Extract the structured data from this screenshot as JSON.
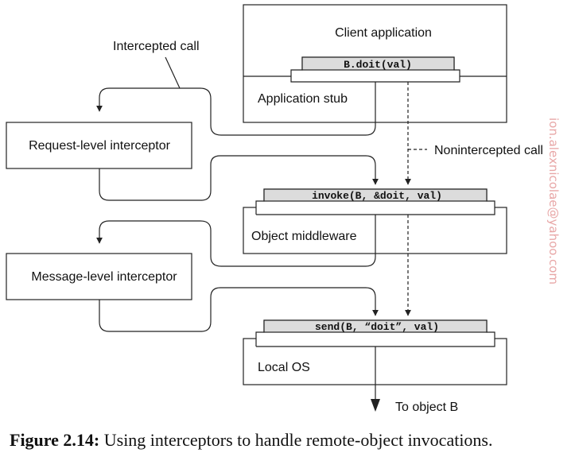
{
  "diagram": {
    "client_application": "Client application",
    "application_stub": "Application stub",
    "stub_call": "B.doit(val)",
    "intercepted_call": "Intercepted call",
    "nonintercepted_call": "Nonintercepted call",
    "request_interceptor": "Request-level interceptor",
    "middleware_call": "invoke(B, &doit, val)",
    "object_middleware": "Object middleware",
    "message_interceptor": "Message-level interceptor",
    "os_call": "send(B, “doit”, val)",
    "local_os": "Local OS",
    "to_object": "To object B",
    "watermark": "ion.alexnicolae@yahoo.com"
  },
  "caption": {
    "label": "Figure 2.14:",
    "text": " Using interceptors to handle remote-object invocations."
  },
  "colors": {
    "call_bar_fill": "#dcdcdc",
    "line": "#222222",
    "watermark": "#e8a7a7"
  }
}
